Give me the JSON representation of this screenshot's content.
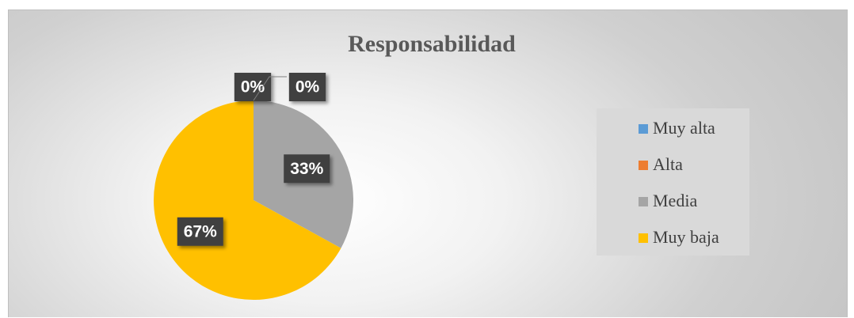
{
  "chart_data": {
    "type": "pie",
    "title": "Responsabilidad",
    "categories": [
      "Muy alta",
      "Alta",
      "Media",
      "Muy baja"
    ],
    "values": [
      0,
      0,
      33,
      67
    ],
    "value_labels": [
      "0%",
      "0%",
      "33%",
      "67%"
    ],
    "colors": [
      "#5b9bd5",
      "#ed7d31",
      "#a5a5a5",
      "#ffc000"
    ],
    "legend": "right"
  }
}
